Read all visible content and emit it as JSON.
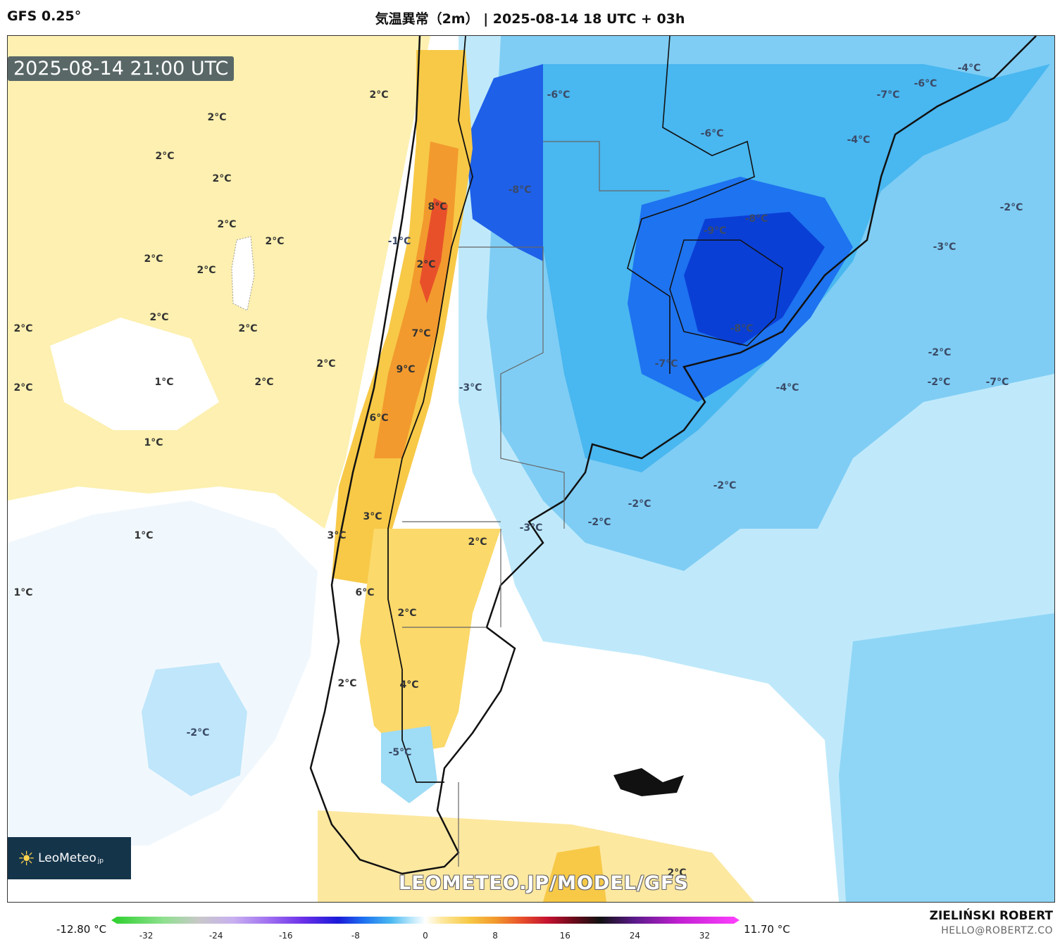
{
  "header": {
    "model": "GFS 0.25°",
    "title": "気温異常（2m） | 2025-08-14 18 UTC + 03h"
  },
  "map": {
    "valid_time": "2025-08-14 21:00 UTC",
    "watermark": "LEOMETEO.JP/MODEL/GFS",
    "logo_text": "LeoMeteo",
    "logo_suffix": "jp",
    "colors": {
      "warm_light": "#fdf0b0",
      "warm": "#f7c947",
      "warm_strong": "#f29a2e",
      "hot": "#e8502a",
      "cold_light": "#e6f3fb",
      "cold": "#9fdcf6",
      "cold_mid": "#49b7f0",
      "cold_strong": "#1e73f0",
      "cold_deep": "#0a3fd6"
    },
    "anomaly_labels": [
      {
        "text": "2°C",
        "kind": "warm"
      },
      {
        "text": "2°C",
        "kind": "warm"
      },
      {
        "text": "2°C",
        "kind": "warm"
      },
      {
        "text": "2°C",
        "kind": "warm"
      },
      {
        "text": "2°C",
        "kind": "warm"
      },
      {
        "text": "2°C",
        "kind": "warm"
      },
      {
        "text": "2°C",
        "kind": "warm"
      },
      {
        "text": "2°C",
        "kind": "warm"
      },
      {
        "text": "2°C",
        "kind": "warm"
      },
      {
        "text": "2°C",
        "kind": "warm"
      },
      {
        "text": "2°C",
        "kind": "warm"
      },
      {
        "text": "2°C",
        "kind": "warm"
      },
      {
        "text": "2°C",
        "kind": "warm"
      },
      {
        "text": "1°C",
        "kind": "warm"
      },
      {
        "text": "2°C",
        "kind": "warm"
      },
      {
        "text": "1°C",
        "kind": "warm"
      },
      {
        "text": "1°C",
        "kind": "warm"
      },
      {
        "text": "1°C",
        "kind": "warm"
      },
      {
        "text": "-1°C",
        "kind": "cold"
      },
      {
        "text": "8°C",
        "kind": "warm"
      },
      {
        "text": "2°C",
        "kind": "warm"
      },
      {
        "text": "7°C",
        "kind": "warm"
      },
      {
        "text": "9°C",
        "kind": "warm"
      },
      {
        "text": "6°C",
        "kind": "warm"
      },
      {
        "text": "3°C",
        "kind": "warm"
      },
      {
        "text": "3°C",
        "kind": "warm"
      },
      {
        "text": "2°C",
        "kind": "warm"
      },
      {
        "text": "6°C",
        "kind": "warm"
      },
      {
        "text": "2°C",
        "kind": "warm"
      },
      {
        "text": "4°C",
        "kind": "warm"
      },
      {
        "text": "2°C",
        "kind": "warm"
      },
      {
        "text": "-5°C",
        "kind": "cold"
      },
      {
        "text": "-2°C",
        "kind": "cold"
      },
      {
        "text": "2°C",
        "kind": "warm"
      },
      {
        "text": "-6°C",
        "kind": "cold"
      },
      {
        "text": "-8°C",
        "kind": "cold"
      },
      {
        "text": "-6°C",
        "kind": "cold"
      },
      {
        "text": "-4°C",
        "kind": "cold"
      },
      {
        "text": "-2°C",
        "kind": "cold"
      },
      {
        "text": "-9°C",
        "kind": "cold"
      },
      {
        "text": "-8°C",
        "kind": "cold"
      },
      {
        "text": "-8°C",
        "kind": "cold"
      },
      {
        "text": "-7°C",
        "kind": "cold"
      },
      {
        "text": "-4°C",
        "kind": "cold"
      },
      {
        "text": "-7°C",
        "kind": "cold"
      },
      {
        "text": "-6°C",
        "kind": "cold"
      },
      {
        "text": "-4°C",
        "kind": "cold"
      },
      {
        "text": "-7°C",
        "kind": "cold"
      },
      {
        "text": "-2°C",
        "kind": "cold"
      },
      {
        "text": "-3°C",
        "kind": "cold"
      },
      {
        "text": "-2°C",
        "kind": "cold"
      },
      {
        "text": "-2°C",
        "kind": "cold"
      },
      {
        "text": "-2°C",
        "kind": "cold"
      },
      {
        "text": "-3°C",
        "kind": "cold"
      },
      {
        "text": "-3°C",
        "kind": "cold"
      },
      {
        "text": "-2°C",
        "kind": "cold"
      }
    ]
  },
  "colorbar": {
    "min_label": "-12.80 °C",
    "max_label": "11.70 °C",
    "ticks": [
      "-32",
      "-24",
      "-16",
      "-8",
      "0",
      "8",
      "16",
      "24",
      "32"
    ],
    "range": [
      -36,
      36
    ],
    "stops": [
      {
        "v": -36,
        "c": "#2ad02a"
      },
      {
        "v": -30,
        "c": "#8fe08f"
      },
      {
        "v": -26,
        "c": "#c8c8c8"
      },
      {
        "v": -22,
        "c": "#c8b0f0"
      },
      {
        "v": -18,
        "c": "#a070f0"
      },
      {
        "v": -14,
        "c": "#6a30e8"
      },
      {
        "v": -10,
        "c": "#1a1ad8"
      },
      {
        "v": -7,
        "c": "#1e73f0"
      },
      {
        "v": -4,
        "c": "#49b7f0"
      },
      {
        "v": -1.5,
        "c": "#bfe9fb"
      },
      {
        "v": 0,
        "c": "#ffffff"
      },
      {
        "v": 2,
        "c": "#fde79a"
      },
      {
        "v": 5,
        "c": "#f7c947"
      },
      {
        "v": 8,
        "c": "#f29a2e"
      },
      {
        "v": 11,
        "c": "#e8502a"
      },
      {
        "v": 14,
        "c": "#c41230"
      },
      {
        "v": 17,
        "c": "#6a0a1a"
      },
      {
        "v": 20,
        "c": "#111111"
      },
      {
        "v": 24,
        "c": "#5a1a8a"
      },
      {
        "v": 29,
        "c": "#c020d0"
      },
      {
        "v": 36,
        "c": "#ff40ff"
      }
    ]
  },
  "footer": {
    "author": "ZIELIŃSKI ROBERT",
    "email": "HELLO@ROBERTZ.CO"
  }
}
